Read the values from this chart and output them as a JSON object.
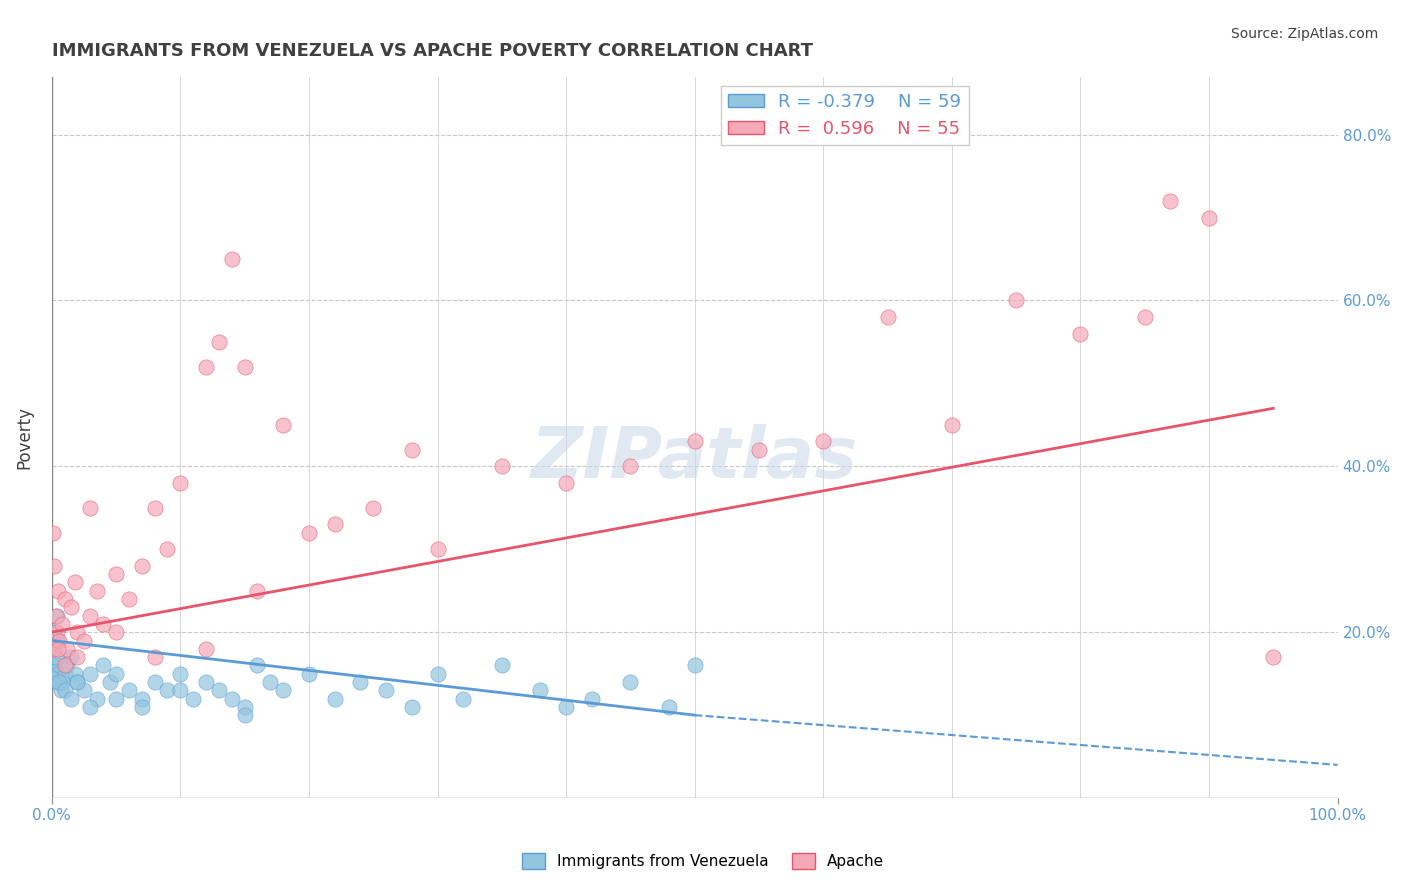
{
  "title": "IMMIGRANTS FROM VENEZUELA VS APACHE POVERTY CORRELATION CHART",
  "source_text": "Source: ZipAtlas.com",
  "xlabel": "",
  "ylabel": "Poverty",
  "xlim": [
    0,
    100
  ],
  "ylim": [
    0,
    87
  ],
  "ytick_positions": [
    20,
    40,
    60,
    80
  ],
  "ytick_labels": [
    "20.0%",
    "40.0%",
    "60.0%",
    "80.0%"
  ],
  "legend_R1": "-0.379",
  "legend_N1": "59",
  "legend_R2": "0.596",
  "legend_N2": "55",
  "series1_color": "#92c5de",
  "series2_color": "#f4a9b8",
  "trendline1_color": "#5b9bd5",
  "trendline2_color": "#e8556a",
  "watermark": "ZIPatlas",
  "background_color": "#ffffff",
  "grid_color": "#c8c8c8",
  "title_color": "#404040",
  "axis_label_color": "#5b9bd5",
  "blue_scatter": [
    [
      0.2,
      16
    ],
    [
      0.3,
      15
    ],
    [
      0.4,
      14
    ],
    [
      0.5,
      15
    ],
    [
      0.6,
      16
    ],
    [
      0.7,
      13
    ],
    [
      0.8,
      14
    ],
    [
      1.0,
      15
    ],
    [
      1.2,
      16
    ],
    [
      1.5,
      17
    ],
    [
      1.8,
      15
    ],
    [
      2.0,
      14
    ],
    [
      2.5,
      13
    ],
    [
      3.0,
      15
    ],
    [
      3.5,
      12
    ],
    [
      4.0,
      16
    ],
    [
      4.5,
      14
    ],
    [
      5.0,
      15
    ],
    [
      6.0,
      13
    ],
    [
      7.0,
      12
    ],
    [
      8.0,
      14
    ],
    [
      9.0,
      13
    ],
    [
      10.0,
      15
    ],
    [
      11.0,
      12
    ],
    [
      12.0,
      14
    ],
    [
      13.0,
      13
    ],
    [
      14.0,
      12
    ],
    [
      15.0,
      11
    ],
    [
      16.0,
      16
    ],
    [
      17.0,
      14
    ],
    [
      18.0,
      13
    ],
    [
      20.0,
      15
    ],
    [
      22.0,
      12
    ],
    [
      24.0,
      14
    ],
    [
      26.0,
      13
    ],
    [
      28.0,
      11
    ],
    [
      30.0,
      15
    ],
    [
      32.0,
      12
    ],
    [
      35.0,
      16
    ],
    [
      38.0,
      13
    ],
    [
      40.0,
      11
    ],
    [
      42.0,
      12
    ],
    [
      45.0,
      14
    ],
    [
      48.0,
      11
    ],
    [
      50.0,
      16
    ],
    [
      0.1,
      18
    ],
    [
      0.2,
      20
    ],
    [
      0.3,
      17
    ],
    [
      0.4,
      22
    ],
    [
      0.5,
      19
    ],
    [
      0.6,
      14
    ],
    [
      1.0,
      13
    ],
    [
      1.5,
      12
    ],
    [
      2.0,
      14
    ],
    [
      3.0,
      11
    ],
    [
      5.0,
      12
    ],
    [
      7.0,
      11
    ],
    [
      10.0,
      13
    ],
    [
      15.0,
      10
    ]
  ],
  "pink_scatter": [
    [
      0.2,
      18
    ],
    [
      0.3,
      22
    ],
    [
      0.4,
      20
    ],
    [
      0.5,
      25
    ],
    [
      0.6,
      19
    ],
    [
      0.8,
      21
    ],
    [
      1.0,
      24
    ],
    [
      1.2,
      18
    ],
    [
      1.5,
      23
    ],
    [
      1.8,
      26
    ],
    [
      2.0,
      20
    ],
    [
      2.5,
      19
    ],
    [
      3.0,
      22
    ],
    [
      3.5,
      25
    ],
    [
      4.0,
      21
    ],
    [
      5.0,
      27
    ],
    [
      6.0,
      24
    ],
    [
      7.0,
      28
    ],
    [
      8.0,
      35
    ],
    [
      9.0,
      30
    ],
    [
      10.0,
      38
    ],
    [
      12.0,
      52
    ],
    [
      13.0,
      55
    ],
    [
      14.0,
      65
    ],
    [
      15.0,
      52
    ],
    [
      16.0,
      25
    ],
    [
      18.0,
      45
    ],
    [
      20.0,
      32
    ],
    [
      22.0,
      33
    ],
    [
      25.0,
      35
    ],
    [
      28.0,
      42
    ],
    [
      30.0,
      30
    ],
    [
      35.0,
      40
    ],
    [
      40.0,
      38
    ],
    [
      45.0,
      40
    ],
    [
      50.0,
      43
    ],
    [
      55.0,
      42
    ],
    [
      60.0,
      43
    ],
    [
      65.0,
      58
    ],
    [
      70.0,
      45
    ],
    [
      75.0,
      60
    ],
    [
      80.0,
      56
    ],
    [
      85.0,
      58
    ],
    [
      87.0,
      72
    ],
    [
      90.0,
      70
    ],
    [
      0.1,
      32
    ],
    [
      0.2,
      28
    ],
    [
      0.5,
      18
    ],
    [
      1.0,
      16
    ],
    [
      2.0,
      17
    ],
    [
      3.0,
      35
    ],
    [
      5.0,
      20
    ],
    [
      8.0,
      17
    ],
    [
      12.0,
      18
    ],
    [
      95.0,
      17
    ]
  ],
  "trendline1_x": [
    0,
    50
  ],
  "trendline1_y": [
    19,
    10
  ],
  "trendline2_x": [
    0,
    95
  ],
  "trendline2_y": [
    20,
    47
  ]
}
